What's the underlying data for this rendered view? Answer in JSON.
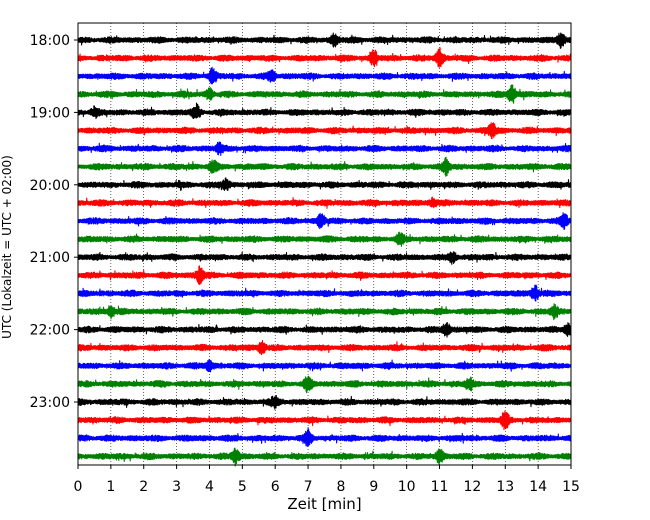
{
  "chart_data": {
    "type": "line",
    "title": "",
    "xlabel": "Zeit  [min]",
    "ylabel": "UTC (Lokalzeit = UTC + 02:00)",
    "xlim": [
      0,
      15
    ],
    "x_ticks": [
      0,
      1,
      2,
      3,
      4,
      5,
      6,
      7,
      8,
      9,
      10,
      11,
      12,
      13,
      14,
      15
    ],
    "grid": "vertical-dotted",
    "start_time": "18:00",
    "trace_interval_minutes": 15,
    "trace_colors": [
      "#000000",
      "#ff0000",
      "#0000ff",
      "#008000"
    ],
    "y_ticks": [
      {
        "label": "18:00",
        "trace": 0
      },
      {
        "label": "19:00",
        "trace": 4
      },
      {
        "label": "20:00",
        "trace": 8
      },
      {
        "label": "21:00",
        "trace": 12
      },
      {
        "label": "22:00",
        "trace": 16
      },
      {
        "label": "23:00",
        "trace": 20
      }
    ],
    "series": [
      {
        "start": "18:00",
        "color": "#000000",
        "events": [
          {
            "t": 14.7,
            "amp": 1.6
          },
          {
            "t": 7.8,
            "amp": 1.1
          }
        ]
      },
      {
        "start": "18:15",
        "color": "#ff0000",
        "events": [
          {
            "t": 11.0,
            "amp": 1.8
          },
          {
            "t": 9.0,
            "amp": 1.4
          }
        ]
      },
      {
        "start": "18:30",
        "color": "#0000ff",
        "events": [
          {
            "t": 4.1,
            "amp": 1.5
          },
          {
            "t": 5.9,
            "amp": 1.0
          }
        ]
      },
      {
        "start": "18:45",
        "color": "#008000",
        "events": [
          {
            "t": 13.2,
            "amp": 2.0
          },
          {
            "t": 4.0,
            "amp": 1.0
          }
        ]
      },
      {
        "start": "19:00",
        "color": "#000000",
        "events": [
          {
            "t": 3.6,
            "amp": 1.5
          },
          {
            "t": 0.5,
            "amp": 1.0
          }
        ]
      },
      {
        "start": "19:15",
        "color": "#ff0000",
        "events": [
          {
            "t": 12.6,
            "amp": 1.4
          }
        ]
      },
      {
        "start": "19:30",
        "color": "#0000ff",
        "events": [
          {
            "t": 4.3,
            "amp": 1.2
          }
        ]
      },
      {
        "start": "19:45",
        "color": "#008000",
        "events": [
          {
            "t": 11.2,
            "amp": 1.6
          },
          {
            "t": 4.1,
            "amp": 1.1
          }
        ]
      },
      {
        "start": "20:00",
        "color": "#000000",
        "events": [
          {
            "t": 4.5,
            "amp": 1.0
          }
        ]
      },
      {
        "start": "20:15",
        "color": "#ff0000",
        "events": [
          {
            "t": 10.8,
            "amp": 1.0
          }
        ]
      },
      {
        "start": "20:30",
        "color": "#0000ff",
        "events": [
          {
            "t": 7.4,
            "amp": 1.3
          },
          {
            "t": 14.8,
            "amp": 1.4
          }
        ]
      },
      {
        "start": "20:45",
        "color": "#008000",
        "events": [
          {
            "t": 9.8,
            "amp": 1.0
          }
        ]
      },
      {
        "start": "21:00",
        "color": "#000000",
        "events": [
          {
            "t": 11.4,
            "amp": 1.2
          }
        ]
      },
      {
        "start": "21:15",
        "color": "#ff0000",
        "events": [
          {
            "t": 3.7,
            "amp": 1.6
          }
        ]
      },
      {
        "start": "21:30",
        "color": "#0000ff",
        "events": [
          {
            "t": 13.9,
            "amp": 1.6
          }
        ]
      },
      {
        "start": "21:45",
        "color": "#008000",
        "events": [
          {
            "t": 1.0,
            "amp": 1.3
          },
          {
            "t": 14.5,
            "amp": 1.3
          }
        ]
      },
      {
        "start": "22:00",
        "color": "#000000",
        "events": [
          {
            "t": 11.2,
            "amp": 1.3
          },
          {
            "t": 14.9,
            "amp": 1.2
          }
        ]
      },
      {
        "start": "22:15",
        "color": "#ff0000",
        "events": [
          {
            "t": 5.6,
            "amp": 1.3
          }
        ]
      },
      {
        "start": "22:30",
        "color": "#0000ff",
        "events": [
          {
            "t": 4.0,
            "amp": 1.0
          }
        ]
      },
      {
        "start": "22:45",
        "color": "#008000",
        "events": [
          {
            "t": 7.0,
            "amp": 1.4
          },
          {
            "t": 11.9,
            "amp": 1.2
          }
        ]
      },
      {
        "start": "23:00",
        "color": "#000000",
        "events": [
          {
            "t": 6.0,
            "amp": 1.0
          }
        ]
      },
      {
        "start": "23:15",
        "color": "#ff0000",
        "events": [
          {
            "t": 13.0,
            "amp": 1.7
          }
        ]
      },
      {
        "start": "23:30",
        "color": "#0000ff",
        "events": [
          {
            "t": 7.0,
            "amp": 1.4
          }
        ]
      },
      {
        "start": "23:45",
        "color": "#008000",
        "events": [
          {
            "t": 4.8,
            "amp": 1.4
          },
          {
            "t": 11.0,
            "amp": 1.4
          }
        ]
      }
    ]
  }
}
